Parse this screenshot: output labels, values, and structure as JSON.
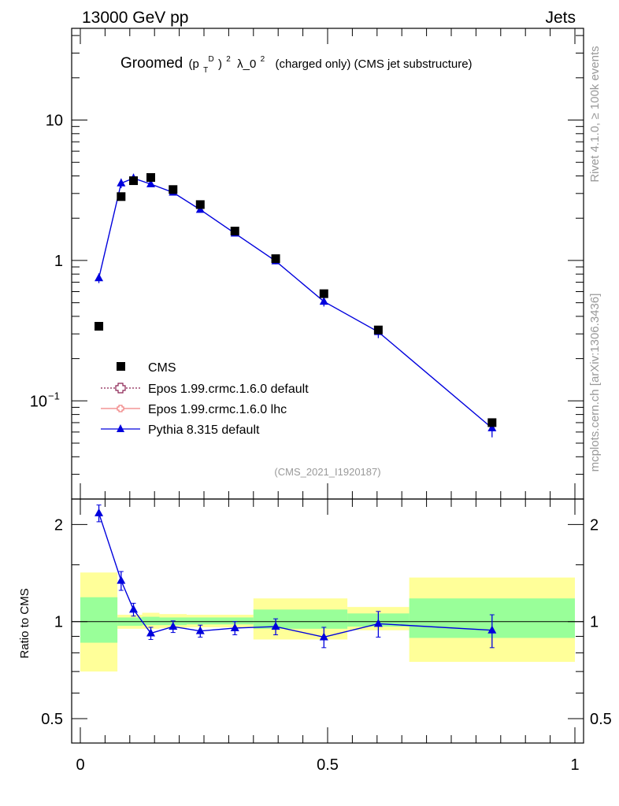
{
  "header": {
    "left": "13000 GeV pp",
    "right": "Jets"
  },
  "side_labels": {
    "rivet": "Rivet 4.1.0, ≥ 100k events",
    "mcplots": "mcplots.cern.ch [arXiv:1306.3436]"
  },
  "title": {
    "groomed": "Groomed",
    "p": "(p",
    "sup_d": "D",
    "sub_t": "T",
    "close": ")",
    "sup2": "2",
    "lambda": "λ_0",
    "rest": "(charged only) (CMS jet substructure)"
  },
  "analysis_id": "(CMS_2021_I1920187)",
  "legend": {
    "cms": "CMS",
    "epos_default": "Epos 1.99.crmc.1.6.0 default",
    "epos_lhc": "Epos 1.99.crmc.1.6.0 lhc",
    "pythia": "Pythia 8.315 default"
  },
  "colors": {
    "cms": "#000000",
    "epos_default": "#8b2252",
    "epos_lhc": "#f08080",
    "pythia": "#0000dd",
    "band_inner": "#99ff99",
    "band_outer": "#ffff99"
  },
  "chart_data": [
    {
      "type": "scatter",
      "panel": "main",
      "yscale": "log",
      "xlim": [
        0,
        1
      ],
      "ylim": [
        0.02,
        45
      ],
      "y_ticks": [
        {
          "value": 10,
          "label": "10"
        },
        {
          "value": 1,
          "label": "1"
        },
        {
          "value": 0.1,
          "label": "10",
          "exp": "−1"
        }
      ],
      "series": [
        {
          "name": "CMS",
          "x": [
            0.0375,
            0.0825,
            0.1075,
            0.1425,
            0.1875,
            0.2425,
            0.3125,
            0.395,
            0.4925,
            0.6025,
            0.8325
          ],
          "values": [
            0.34,
            2.85,
            3.7,
            3.9,
            3.2,
            2.5,
            1.62,
            1.03,
            0.58,
            0.32,
            0.07
          ]
        },
        {
          "name": "Pythia 8.315 default",
          "x": [
            0.0375,
            0.0825,
            0.1075,
            0.1425,
            0.1875,
            0.2425,
            0.3125,
            0.395,
            0.4925,
            0.6025,
            0.8325
          ],
          "values": [
            0.75,
            3.55,
            3.85,
            3.5,
            3.05,
            2.3,
            1.56,
            0.99,
            0.51,
            0.31,
            0.064
          ],
          "err_lo": [
            0.06,
            0.28,
            0.3,
            0.14,
            0.12,
            0.1,
            0.07,
            0.05,
            0.04,
            0.03,
            0.009
          ],
          "err_hi": [
            0.06,
            0.28,
            0.3,
            0.14,
            0.12,
            0.1,
            0.07,
            0.05,
            0.04,
            0.03,
            0.009
          ]
        }
      ]
    },
    {
      "type": "scatter",
      "panel": "ratio",
      "ylabel": "Ratio to CMS",
      "yscale": "log",
      "xlim": [
        0,
        1
      ],
      "ylim": [
        0.42,
        2.4
      ],
      "y_ticks": [
        {
          "value": 2,
          "label": "2"
        },
        {
          "value": 1,
          "label": "1"
        },
        {
          "value": 0.5,
          "label": "0.5"
        }
      ],
      "x_ticks": [
        {
          "value": 0,
          "label": "0"
        },
        {
          "value": 0.5,
          "label": "0.5"
        },
        {
          "value": 1,
          "label": "1"
        }
      ],
      "bands": [
        {
          "x0": 0.0,
          "x1": 0.075,
          "in_lo": 0.86,
          "in_hi": 1.19,
          "out_lo": 0.7,
          "out_hi": 1.42
        },
        {
          "x0": 0.075,
          "x1": 0.125,
          "in_lo": 0.97,
          "in_hi": 1.03,
          "out_lo": 0.95,
          "out_hi": 1.05
        },
        {
          "x0": 0.125,
          "x1": 0.16,
          "in_lo": 0.975,
          "in_hi": 1.035,
          "out_lo": 0.95,
          "out_hi": 1.065
        },
        {
          "x0": 0.16,
          "x1": 0.215,
          "in_lo": 0.975,
          "in_hi": 1.03,
          "out_lo": 0.955,
          "out_hi": 1.055
        },
        {
          "x0": 0.215,
          "x1": 0.35,
          "in_lo": 0.98,
          "in_hi": 1.03,
          "out_lo": 0.96,
          "out_hi": 1.05
        },
        {
          "x0": 0.35,
          "x1": 0.54,
          "in_lo": 0.95,
          "in_hi": 1.09,
          "out_lo": 0.88,
          "out_hi": 1.18
        },
        {
          "x0": 0.54,
          "x1": 0.665,
          "in_lo": 0.965,
          "in_hi": 1.06,
          "out_lo": 0.94,
          "out_hi": 1.11
        },
        {
          "x0": 0.665,
          "x1": 1.0,
          "in_lo": 0.89,
          "in_hi": 1.18,
          "out_lo": 0.75,
          "out_hi": 1.37
        }
      ],
      "series": [
        {
          "name": "Pythia 8.315 default",
          "x": [
            0.0375,
            0.0825,
            0.1075,
            0.1425,
            0.1875,
            0.2425,
            0.3125,
            0.395,
            0.4925,
            0.6025,
            0.8325
          ],
          "values": [
            2.17,
            1.34,
            1.09,
            0.92,
            0.965,
            0.935,
            0.955,
            0.965,
            0.895,
            0.985,
            0.94
          ],
          "err_lo": [
            0.13,
            0.09,
            0.05,
            0.04,
            0.04,
            0.04,
            0.045,
            0.055,
            0.065,
            0.09,
            0.11
          ],
          "err_hi": [
            0.13,
            0.09,
            0.05,
            0.04,
            0.04,
            0.04,
            0.045,
            0.055,
            0.065,
            0.09,
            0.11
          ]
        }
      ]
    }
  ]
}
